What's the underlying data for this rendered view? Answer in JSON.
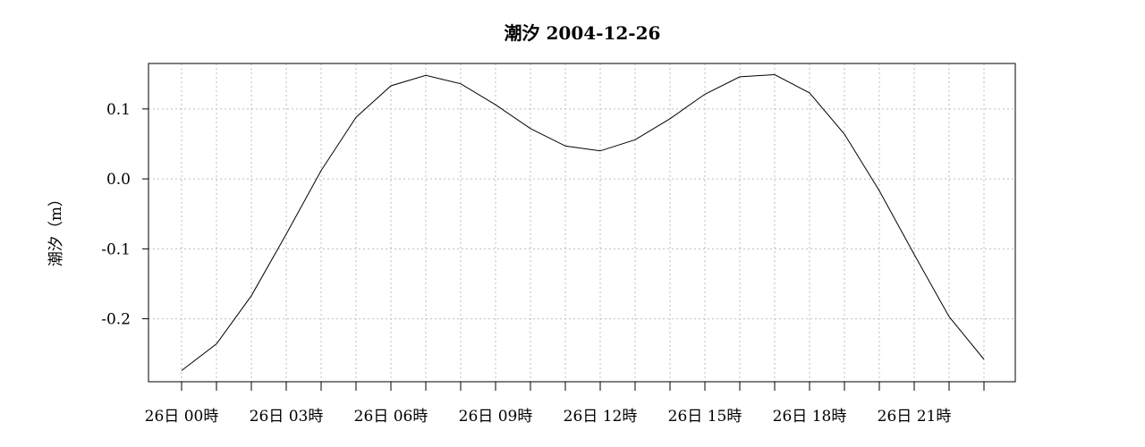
{
  "chart_data": {
    "type": "line",
    "title": "潮汐 2004-12-26",
    "xlabel": "",
    "ylabel": "潮汐（m）",
    "ylim": [
      -0.29,
      0.165
    ],
    "xlim": [
      -1,
      24
    ],
    "grid": true,
    "y_ticks": [
      {
        "value": 0.1,
        "label": "0.1"
      },
      {
        "value": 0.0,
        "label": "0.0"
      },
      {
        "value": -0.1,
        "label": "-0.1"
      },
      {
        "value": -0.2,
        "label": "-0.2"
      }
    ],
    "x_tick_positions": [
      0,
      1,
      2,
      3,
      4,
      5,
      6,
      7,
      8,
      9,
      10,
      11,
      12,
      13,
      14,
      15,
      16,
      17,
      18,
      19,
      20,
      21,
      22,
      23
    ],
    "x_tick_labels": [
      {
        "value": 0,
        "label": "26日 00時"
      },
      {
        "value": 3,
        "label": "26日 03時"
      },
      {
        "value": 6,
        "label": "26日 06時"
      },
      {
        "value": 9,
        "label": "26日 09時"
      },
      {
        "value": 12,
        "label": "26日 12時"
      },
      {
        "value": 15,
        "label": "26日 15時"
      },
      {
        "value": 18,
        "label": "26日 18時"
      },
      {
        "value": 21,
        "label": "26日 21時"
      }
    ],
    "series": [
      {
        "x": [
          0,
          1,
          2,
          3,
          4,
          5,
          6,
          7,
          8,
          9,
          10,
          11,
          12,
          13,
          14,
          15,
          16,
          17,
          18,
          19,
          20,
          21,
          22,
          23
        ],
        "values": [
          -0.274,
          -0.236,
          -0.167,
          -0.079,
          0.012,
          0.088,
          0.133,
          0.148,
          0.136,
          0.106,
          0.072,
          0.047,
          0.04,
          0.056,
          0.086,
          0.121,
          0.146,
          0.149,
          0.123,
          0.064,
          -0.017,
          -0.108,
          -0.197,
          -0.258
        ]
      }
    ]
  }
}
